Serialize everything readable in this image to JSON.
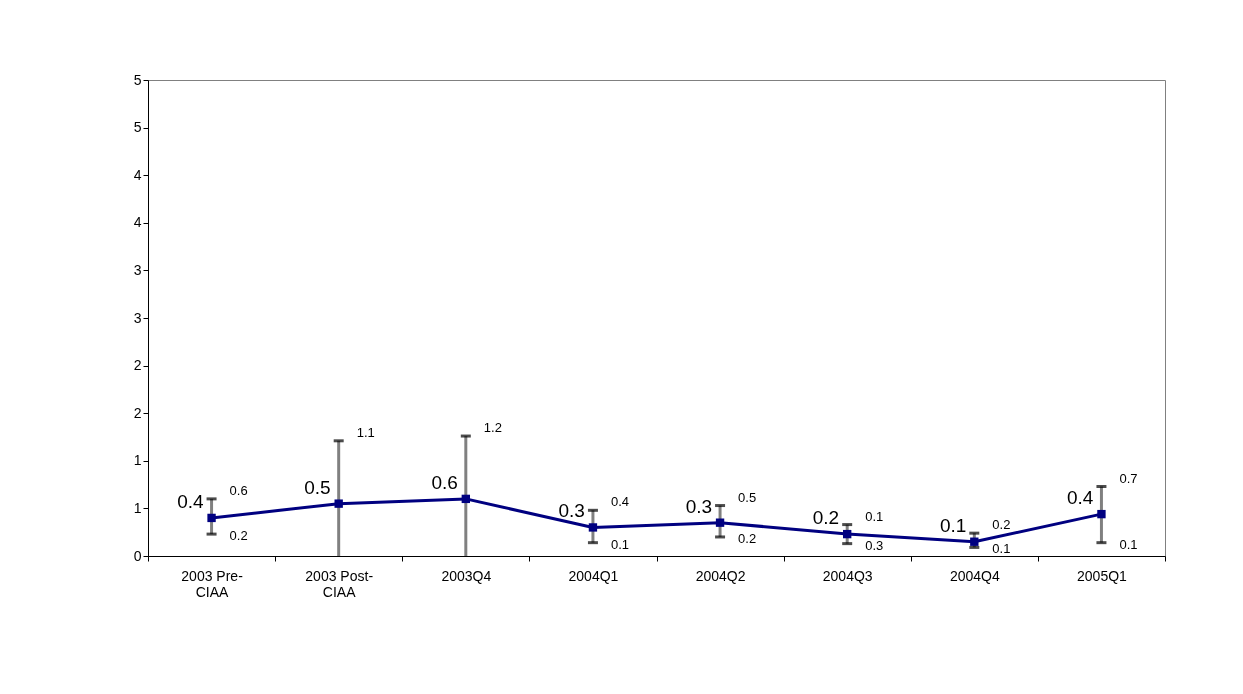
{
  "chart_data": {
    "type": "line",
    "categories": [
      "2003 Pre-CIAA",
      "2003 Post-CIAA",
      "2003Q4",
      "2004Q1",
      "2004Q2",
      "2004Q3",
      "2004Q4",
      "2005Q1"
    ],
    "series": [
      {
        "color": "#000080",
        "values": [
          0.4,
          0.55,
          0.6,
          0.3,
          0.35,
          0.23,
          0.15,
          0.44
        ],
        "value_labels": [
          "0.4",
          "0.5",
          "0.6",
          "0.3",
          "0.3",
          "0.2",
          "0.1",
          "0.4"
        ],
        "errors": [
          [
            0.23,
            0.6
          ],
          [
            0,
            1.21
          ],
          [
            0,
            1.26
          ],
          [
            0.14,
            0.48
          ],
          [
            0.2,
            0.53
          ],
          [
            0.13,
            0.33
          ],
          [
            0.09,
            0.24
          ],
          [
            0.14,
            0.73
          ]
        ]
      }
    ],
    "ylim": [
      0,
      5
    ],
    "yticks": [
      0,
      {
        "value": 0.5,
        "label": "1"
      },
      1,
      {
        "value": 1.5,
        "label": "2"
      },
      2,
      {
        "value": 2.5,
        "label": "3"
      },
      3,
      {
        "value": 3.5,
        "label": "4"
      },
      4,
      {
        "value": 4.5,
        "label": "5"
      },
      5
    ],
    "marker": "square",
    "line_style": "solid",
    "grid": false,
    "annotations": [
      {
        "text": "0.6",
        "x": "2003 Pre-CIAA",
        "y": 0.6
      },
      {
        "text": "0.2",
        "x": "2003 Pre-CIAA",
        "y": 0.23
      },
      {
        "text": "1.1",
        "x": "2003 Post-CIAA",
        "y": 1.21
      },
      {
        "text": "1.2",
        "x": "2003Q4",
        "y": 1.26
      },
      {
        "text": "0.4",
        "x": "2004Q1",
        "y": 0.48
      },
      {
        "text": "0.1",
        "x": "2004Q1",
        "y": 0.14
      },
      {
        "text": "0.5",
        "x": "2004Q2",
        "y": 0.53
      },
      {
        "text": "0.2",
        "x": "2004Q2",
        "y": 0.2
      },
      {
        "text": "0.1",
        "x": "2004Q3",
        "y": 0.33
      },
      {
        "text": "0.3",
        "x": "2004Q3",
        "y": 0.13
      },
      {
        "text": "0.2",
        "x": "2004Q4",
        "y": 0.24
      },
      {
        "text": "0.1",
        "x": "2004Q4",
        "y": 0.09
      },
      {
        "text": "0.7",
        "x": "2005Q1",
        "y": 0.73
      },
      {
        "text": "0.1",
        "x": "2005Q1",
        "y": 0.14
      }
    ]
  }
}
